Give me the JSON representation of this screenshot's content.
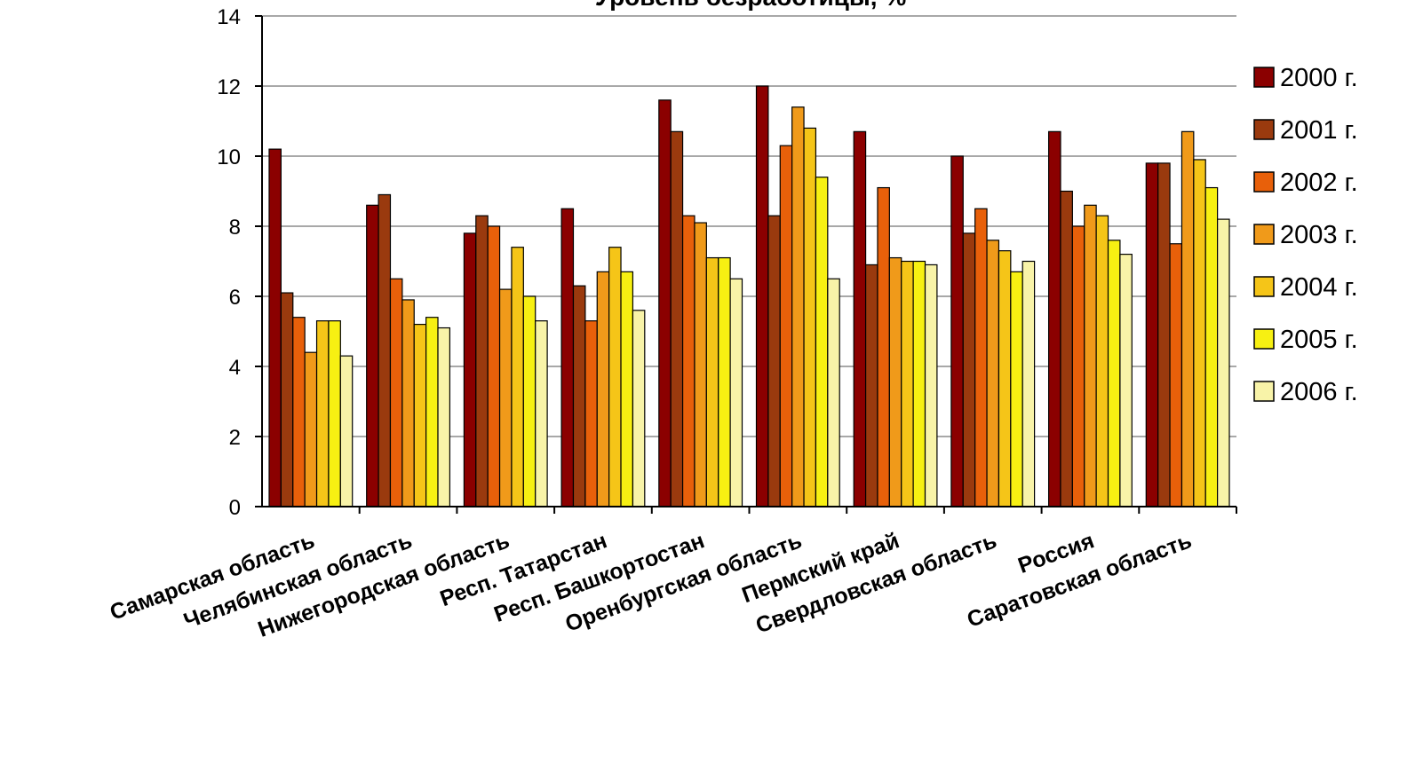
{
  "chart_data": {
    "type": "bar",
    "title": "Уровень безработицы, %",
    "xlabel": "",
    "ylabel": "",
    "ylim": [
      0,
      14
    ],
    "yticks": [
      0,
      2,
      4,
      6,
      8,
      10,
      12,
      14
    ],
    "grid": true,
    "legend_position": "right",
    "categories": [
      "Самарская область",
      "Челябинская область",
      "Нижегородская область",
      "Респ. Татарстан",
      "Респ. Башкортостан",
      "Оренбургская область",
      "Пермский край",
      "Свердловская область",
      "Россия",
      "Саратовская область"
    ],
    "series": [
      {
        "name": "2000 г.",
        "color": "#8B0000",
        "values": [
          10.2,
          8.6,
          7.8,
          8.5,
          11.6,
          12.0,
          10.7,
          10.0,
          10.7,
          9.8
        ]
      },
      {
        "name": "2001 г.",
        "color": "#9A3A0E",
        "values": [
          6.1,
          8.9,
          8.3,
          6.3,
          10.7,
          8.3,
          6.9,
          7.8,
          9.0,
          9.8
        ]
      },
      {
        "name": "2002 г.",
        "color": "#E8600A",
        "values": [
          5.4,
          6.5,
          8.0,
          5.3,
          8.3,
          10.3,
          9.1,
          8.5,
          8.0,
          7.5
        ]
      },
      {
        "name": "2003 г.",
        "color": "#F09A1A",
        "values": [
          4.4,
          5.9,
          6.2,
          6.7,
          8.1,
          11.4,
          7.1,
          7.6,
          8.6,
          10.7
        ]
      },
      {
        "name": "2004 г.",
        "color": "#F5C518",
        "values": [
          5.3,
          5.2,
          7.4,
          7.4,
          7.1,
          10.8,
          7.0,
          7.3,
          8.3,
          9.9
        ]
      },
      {
        "name": "2005 г.",
        "color": "#F7F012",
        "values": [
          5.3,
          5.4,
          6.0,
          6.7,
          7.1,
          9.4,
          7.0,
          6.7,
          7.6,
          9.1
        ]
      },
      {
        "name": "2006 г.",
        "color": "#F8F3A8",
        "values": [
          4.3,
          5.1,
          5.3,
          5.6,
          6.5,
          6.5,
          6.9,
          7.0,
          7.2,
          8.2
        ]
      }
    ]
  }
}
